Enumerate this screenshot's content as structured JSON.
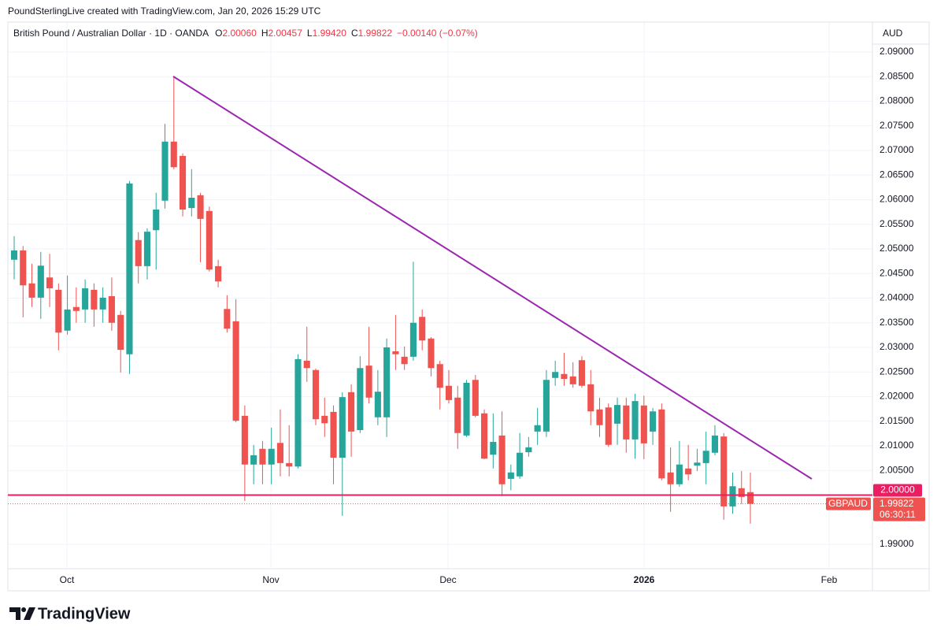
{
  "chart_data": {
    "type": "candlestick",
    "attribution": "PoundSterlingLive created with TradingView.com, Jan 20, 2026 15:29 UTC",
    "symbol": "British Pound / Australian Dollar · 1D · OANDA",
    "header": {
      "open": "2.00060",
      "high": "2.00457",
      "low": "1.99420",
      "close": "1.99822",
      "change": "−0.00140 (−0.07%)"
    },
    "ohlc_letters": [
      "O",
      "H",
      "L",
      "C"
    ],
    "currency": "AUD",
    "ticker": "GBPAUD",
    "countdown": "06:30:11",
    "brand": "TradingView",
    "up_color": "#26a69a",
    "down_color": "#ef5350",
    "ylim": [
      1.98504,
      2.09608
    ],
    "yticks": [
      {
        "value": 2.09,
        "label": "2.09000"
      },
      {
        "value": 2.085,
        "label": "2.08500"
      },
      {
        "value": 2.08,
        "label": "2.08000"
      },
      {
        "value": 2.075,
        "label": "2.07500"
      },
      {
        "value": 2.07,
        "label": "2.07000"
      },
      {
        "value": 2.065,
        "label": "2.06500"
      },
      {
        "value": 2.06,
        "label": "2.06000"
      },
      {
        "value": 2.055,
        "label": "2.05500"
      },
      {
        "value": 2.05,
        "label": "2.05000"
      },
      {
        "value": 2.045,
        "label": "2.04500"
      },
      {
        "value": 2.04,
        "label": "2.04000"
      },
      {
        "value": 2.035,
        "label": "2.03500"
      },
      {
        "value": 2.03,
        "label": "2.03000"
      },
      {
        "value": 2.025,
        "label": "2.02500"
      },
      {
        "value": 2.02,
        "label": "2.02000"
      },
      {
        "value": 2.015,
        "label": "2.01500"
      },
      {
        "value": 2.01,
        "label": "2.01000"
      },
      {
        "value": 2.005,
        "label": "2.00500"
      },
      {
        "value": 1.99,
        "label": "1.99000"
      }
    ],
    "xlabels": [
      "Oct",
      "Nov",
      "Dec",
      "2026",
      "Feb"
    ],
    "grid": true,
    "hline": {
      "value": 2,
      "label": "2.00000",
      "color": "#e91e63"
    },
    "trendline_color": "#9c27b0",
    "candles": [
      [
        2.0478,
        2.0526,
        2.0438,
        2.0497
      ],
      [
        2.0497,
        2.0506,
        2.0361,
        2.0426
      ],
      [
        2.043,
        2.047,
        2.0382,
        2.0401
      ],
      [
        2.0401,
        2.0494,
        2.0358,
        2.0466
      ],
      [
        2.0442,
        2.049,
        2.0382,
        2.042
      ],
      [
        2.0417,
        2.043,
        2.0294,
        2.033
      ],
      [
        2.0334,
        2.0446,
        2.0326,
        2.0377
      ],
      [
        2.0382,
        2.0422,
        2.035,
        2.0374
      ],
      [
        2.0377,
        2.0438,
        2.035,
        2.042
      ],
      [
        2.0417,
        2.043,
        2.0342,
        2.0377
      ],
      [
        2.0377,
        2.0422,
        2.035,
        2.0401
      ],
      [
        2.0404,
        2.0442,
        2.0334,
        2.035
      ],
      [
        2.0366,
        2.0374,
        2.0249,
        2.0295
      ],
      [
        2.0286,
        2.0638,
        2.0246,
        2.0633
      ],
      [
        2.0518,
        2.0534,
        2.043,
        2.0465
      ],
      [
        2.0465,
        2.0542,
        2.0438,
        2.0535
      ],
      [
        2.0538,
        2.0614,
        2.0458,
        2.058
      ],
      [
        2.0598,
        2.0754,
        2.0582,
        2.0718
      ],
      [
        2.0718,
        2.085,
        2.0662,
        2.0666
      ],
      [
        2.0689,
        2.0694,
        2.0566,
        2.058
      ],
      [
        2.0583,
        2.0662,
        2.0566,
        2.0604
      ],
      [
        2.0609,
        2.0614,
        2.0473,
        2.0561
      ],
      [
        2.0577,
        2.0586,
        2.0454,
        2.0458
      ],
      [
        2.0465,
        2.0478,
        2.0422,
        2.0434
      ],
      [
        2.0378,
        2.0406,
        2.033,
        2.0338
      ],
      [
        2.0353,
        2.0398,
        2.0148,
        2.0151
      ],
      [
        2.0161,
        2.0182,
        1.9988,
        2.0062
      ],
      [
        2.0062,
        2.0102,
        2.0022,
        2.0081
      ],
      [
        2.0094,
        2.011,
        2.0022,
        2.0062
      ],
      [
        2.0062,
        2.0137,
        2.0022,
        2.0094
      ],
      [
        2.0106,
        2.0174,
        2.0038,
        2.0065
      ],
      [
        2.0065,
        2.0142,
        2.0038,
        2.0058
      ],
      [
        2.0058,
        2.0286,
        2.0054,
        2.0276
      ],
      [
        2.0273,
        2.0342,
        2.023,
        2.0258
      ],
      [
        2.0254,
        2.0257,
        2.0142,
        2.0154
      ],
      [
        2.0161,
        2.0198,
        2.0118,
        2.0146
      ],
      [
        2.0169,
        2.0182,
        2.0022,
        2.0076
      ],
      [
        2.0076,
        2.0209,
        1.9958,
        2.0199
      ],
      [
        2.0209,
        2.0225,
        2.0078,
        2.0129
      ],
      [
        2.0132,
        2.0282,
        2.0126,
        2.0258
      ],
      [
        2.0263,
        2.0342,
        2.0186,
        2.0198
      ],
      [
        2.0158,
        2.0254,
        2.0142,
        2.021
      ],
      [
        2.0158,
        2.0318,
        2.0118,
        2.03
      ],
      [
        2.0292,
        2.0366,
        2.0254,
        2.0286
      ],
      [
        2.0281,
        2.0302,
        2.0254,
        2.0266
      ],
      [
        2.0281,
        2.0474,
        2.0273,
        2.035
      ],
      [
        2.0362,
        2.0377,
        2.0294,
        2.0314
      ],
      [
        2.0318,
        2.0321,
        2.0241,
        2.0258
      ],
      [
        2.0266,
        2.0273,
        2.0174,
        2.0218
      ],
      [
        2.0222,
        2.0254,
        2.0186,
        2.0193
      ],
      [
        2.0198,
        2.0222,
        2.0094,
        2.0126
      ],
      [
        2.0121,
        2.0234,
        2.0118,
        2.0228
      ],
      [
        2.0234,
        2.0244,
        2.0158,
        2.0161
      ],
      [
        2.0166,
        2.0174,
        2.0073,
        2.0074
      ],
      [
        2.0082,
        2.0166,
        2.0054,
        2.0108
      ],
      [
        2.0121,
        2.017,
        1.9998,
        2.0022
      ],
      [
        2.0033,
        2.0062,
        2.001,
        2.0046
      ],
      [
        2.0038,
        2.0126,
        2.0033,
        2.0086
      ],
      [
        2.0087,
        2.0118,
        2.0078,
        2.0097
      ],
      [
        2.0129,
        2.0177,
        2.0102,
        2.0142
      ],
      [
        2.0129,
        2.0254,
        2.0118,
        2.0234
      ],
      [
        2.0238,
        2.0273,
        2.0222,
        2.025
      ],
      [
        2.0246,
        2.0289,
        2.0222,
        2.0236
      ],
      [
        2.0241,
        2.027,
        2.0218,
        2.0225
      ],
      [
        2.0274,
        2.0282,
        2.0218,
        2.0222
      ],
      [
        2.0225,
        2.0254,
        2.0142,
        2.017
      ],
      [
        2.0174,
        2.0198,
        2.0118,
        2.0142
      ],
      [
        2.0178,
        2.0186,
        2.0098,
        2.0102
      ],
      [
        2.0145,
        2.0198,
        2.0102,
        2.0183
      ],
      [
        2.0182,
        2.0198,
        2.0086,
        2.0113
      ],
      [
        2.0113,
        2.0206,
        2.0074,
        2.0191
      ],
      [
        2.0182,
        2.0202,
        2.0073,
        2.0105
      ],
      [
        2.0129,
        2.0177,
        2.0102,
        2.017
      ],
      [
        2.0174,
        2.0186,
        2.003,
        2.0034
      ],
      [
        2.0046,
        2.0097,
        1.9966,
        2.0022
      ],
      [
        2.0022,
        2.011,
        2.0017,
        2.0062
      ],
      [
        2.0054,
        2.0102,
        2.003,
        2.0042
      ],
      [
        2.006,
        2.0094,
        2.0049,
        2.0066
      ],
      [
        2.0065,
        2.0129,
        2.0022,
        2.009
      ],
      [
        2.0086,
        2.0142,
        2.0081,
        2.0121
      ],
      [
        2.0119,
        2.0126,
        1.995,
        1.9977
      ],
      [
        1.9977,
        2.0046,
        1.9962,
        2.0018
      ],
      [
        2.0014,
        2.0049,
        1.9982,
        1.99962
      ],
      [
        2.0006,
        2.00457,
        1.9942,
        1.99822
      ]
    ]
  }
}
